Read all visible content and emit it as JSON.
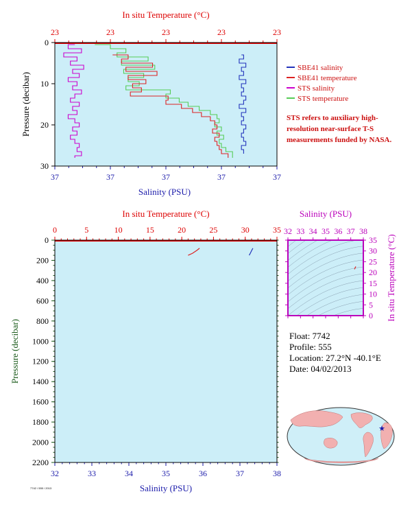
{
  "colors": {
    "plot_bg": "#cceef8",
    "temp_axis": "#dd0000",
    "sal_axis": "#1a1aaa",
    "pressure_axis": "#1a5a1a",
    "ts_axis": "#bb00bb",
    "sbe_salinity": "#2233bb",
    "sbe_temperature": "#dd2222",
    "sts_salinity": "#cc00cc",
    "sts_temperature": "#55cc55"
  },
  "info": {
    "float": "Float:  7742",
    "profile": "Profile:  555",
    "location": "Location:  27.2°N  -40.1°E",
    "date": "Date:  04/02/2013"
  },
  "note": "STS refers to auxiliary high-resolution near-surface T-S measurements funded by NASA.",
  "credit": "7742 / 555 / 2013",
  "chart_data": [
    {
      "type": "line",
      "title": "",
      "top_axis_label": "In situ Temperature (°C)",
      "top_tick_labels": [
        "23",
        "23",
        "23",
        "23",
        "23"
      ],
      "bottom_axis_label": "Salinity (PSU)",
      "bottom_tick_labels": [
        "37",
        "37",
        "37",
        "37",
        "37"
      ],
      "ylabel": "Pressure (decibar)",
      "y_tick_labels": [
        "0",
        "10",
        "20",
        "30"
      ],
      "ylim": [
        0,
        30
      ],
      "y_inverted": true,
      "grid": false,
      "legend_position": "right",
      "legend": [
        {
          "name": "SBE41 salinity",
          "color": "#2233bb"
        },
        {
          "name": "SBE41 temperature",
          "color": "#dd2222"
        },
        {
          "name": "STS salinity",
          "color": "#cc00cc"
        },
        {
          "name": "STS temperature",
          "color": "#55cc55"
        }
      ],
      "series": [
        {
          "name": "STS salinity",
          "axis": "bottom",
          "x": [
            0.09,
            0.06,
            0.12,
            0.04,
            0.1,
            0.07,
            0.13,
            0.08,
            0.11,
            0.06,
            0.1,
            0.08,
            0.12,
            0.09,
            0.07,
            0.11,
            0.08,
            0.1,
            0.06,
            0.09,
            0.11,
            0.08,
            0.1,
            0.07,
            0.09,
            0.11,
            0.1,
            0.12,
            0.09
          ],
          "p": [
            0.5,
            1.5,
            2.5,
            3.5,
            4.5,
            5.5,
            6.5,
            7.5,
            8.5,
            9.5,
            10.5,
            11.5,
            12.5,
            13.5,
            14.5,
            15.5,
            16.5,
            17.5,
            18.5,
            19.5,
            20.5,
            21.5,
            22.5,
            23.5,
            24.5,
            25.5,
            26.5,
            27.5,
            28
          ]
        },
        {
          "name": "STS temperature",
          "axis": "top",
          "x": [
            0.18,
            0.25,
            0.32,
            0.28,
            0.42,
            0.3,
            0.45,
            0.31,
            0.4,
            0.33,
            0.38,
            0.32,
            0.52,
            0.5,
            0.56,
            0.6,
            0.65,
            0.7,
            0.73,
            0.74,
            0.72,
            0.75,
            0.73,
            0.76,
            0.74,
            0.75,
            0.77,
            0.8,
            0.8
          ],
          "p": [
            0.5,
            1.5,
            2.5,
            3.5,
            4.5,
            5.5,
            6.5,
            7.5,
            8.5,
            9.5,
            10.5,
            11.5,
            12.5,
            13.5,
            14.5,
            15.5,
            16.5,
            17.5,
            18.5,
            19.5,
            20.5,
            21.5,
            22.5,
            23.5,
            24.5,
            25.5,
            26.5,
            27.5,
            28
          ]
        },
        {
          "name": "SBE41 temperature",
          "axis": "top",
          "x": [
            0.26,
            0.33,
            0.3,
            0.44,
            0.32,
            0.46,
            0.33,
            0.41,
            0.35,
            0.39,
            0.34,
            0.51,
            0.5,
            0.57,
            0.62,
            0.66,
            0.7,
            0.72,
            0.73,
            0.71,
            0.74,
            0.72,
            0.73,
            0.74,
            0.75,
            0.78
          ],
          "p": [
            3,
            4,
            5,
            6,
            7,
            8,
            9,
            10,
            11,
            12,
            13,
            14,
            15,
            16,
            17,
            18,
            19,
            20,
            21,
            22,
            23,
            24,
            25,
            26,
            27,
            28
          ]
        },
        {
          "name": "SBE41 salinity",
          "axis": "bottom",
          "x": [
            0.84,
            0.85,
            0.83,
            0.86,
            0.84,
            0.85,
            0.83,
            0.86,
            0.84,
            0.85,
            0.84,
            0.86,
            0.85,
            0.83,
            0.86,
            0.84,
            0.85,
            0.84,
            0.86,
            0.85,
            0.84,
            0.85,
            0.86,
            0.84,
            0.85
          ],
          "p": [
            3,
            4,
            5,
            6,
            7,
            8,
            9,
            10,
            11,
            12,
            13,
            14,
            15,
            16,
            17,
            18,
            19,
            20,
            21,
            22,
            23,
            24,
            25,
            26,
            27
          ]
        }
      ]
    },
    {
      "type": "line",
      "title": "",
      "top_axis_label": "In situ Temperature (°C)",
      "top_tick_labels": [
        "0",
        "5",
        "10",
        "15",
        "20",
        "25",
        "30",
        "35"
      ],
      "xlim_top": [
        0,
        35
      ],
      "bottom_axis_label": "Salinity (PSU)",
      "bottom_tick_labels": [
        "32",
        "33",
        "34",
        "35",
        "36",
        "37",
        "38"
      ],
      "xlim_bottom": [
        32,
        38
      ],
      "ylabel": "Pressure (decibar)",
      "y_tick_labels": [
        "0",
        "200",
        "400",
        "600",
        "800",
        "1000",
        "1200",
        "1400",
        "1600",
        "1800",
        "2000",
        "2200"
      ],
      "ylim": [
        0,
        2200
      ],
      "y_inverted": true,
      "grid": false,
      "series": [
        {
          "name": "SBE41 temperature",
          "axis": "top",
          "x": [
            22.8,
            22.4,
            21.7,
            21.0
          ],
          "y": [
            80,
            100,
            130,
            150
          ]
        },
        {
          "name": "SBE41 salinity",
          "axis": "bottom",
          "x": [
            37.35,
            37.32,
            37.28,
            37.25
          ],
          "y": [
            80,
            100,
            130,
            150
          ]
        }
      ]
    },
    {
      "type": "scatter",
      "title": "",
      "top_axis_label": "Salinity (PSU)",
      "top_tick_labels": [
        "32",
        "33",
        "34",
        "35",
        "36",
        "37",
        "38"
      ],
      "xlim": [
        32,
        38
      ],
      "right_axis_label": "In situ Temperature (°C)",
      "right_tick_labels": [
        "0",
        "5",
        "10",
        "15",
        "20",
        "25",
        "30",
        "35"
      ],
      "ylim": [
        0,
        35
      ],
      "grid": false,
      "series": [
        {
          "name": "T-S",
          "x": [
            37.3,
            37.35,
            37.4
          ],
          "y": [
            21.5,
            22.2,
            22.8
          ]
        }
      ]
    }
  ]
}
